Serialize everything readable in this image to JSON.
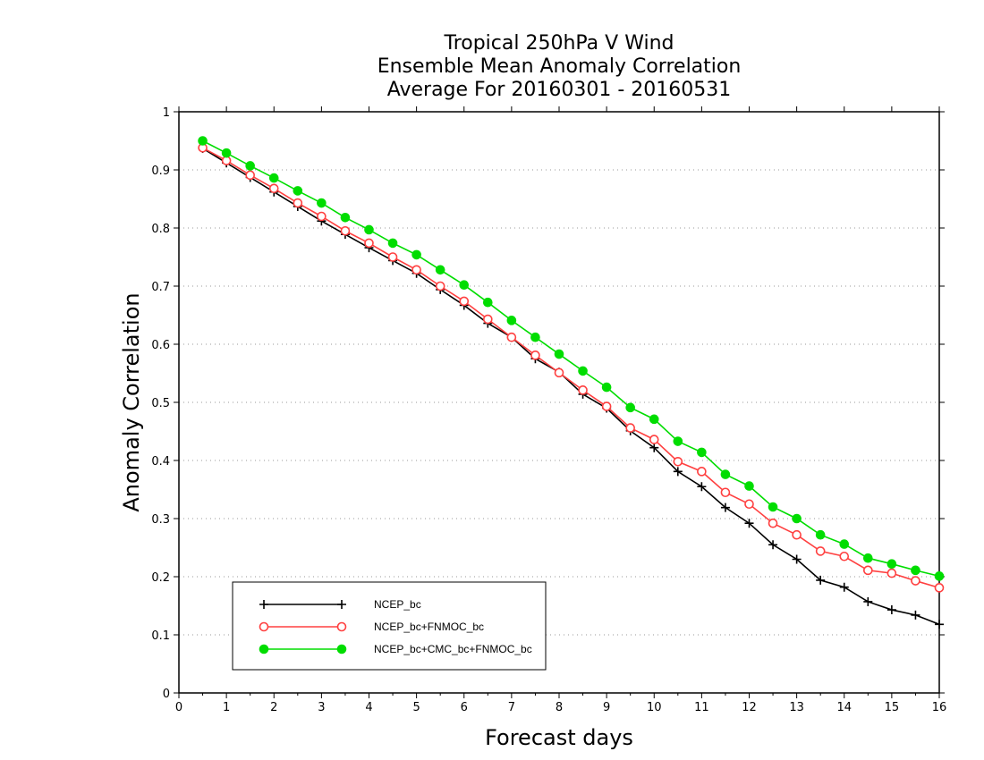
{
  "chart_data": {
    "type": "line",
    "title": [
      "Tropical 250hPa V Wind",
      "Ensemble Mean Anomaly Correlation",
      "Average For 20160301 - 20160531"
    ],
    "xlabel": "Forecast days",
    "ylabel": "Anomaly Correlation",
    "xlim": [
      0,
      16
    ],
    "ylim": [
      0,
      1
    ],
    "xticks": [
      "0",
      "1",
      "2",
      "3",
      "4",
      "5",
      "6",
      "7",
      "8",
      "9",
      "10",
      "11",
      "12",
      "13",
      "14",
      "15",
      "16"
    ],
    "yticks": [
      "0",
      "0.1",
      "0.2",
      "0.3",
      "0.4",
      "0.5",
      "0.6",
      "0.7",
      "0.8",
      "0.9",
      "1"
    ],
    "grid": "horizontal dotted",
    "legend_position": "bottom-left",
    "x": [
      0.5,
      1,
      1.5,
      2,
      2.5,
      3,
      3.5,
      4,
      4.5,
      5,
      5.5,
      6,
      6.5,
      7,
      7.5,
      8,
      8.5,
      9,
      9.5,
      10,
      10.5,
      11,
      11.5,
      12,
      12.5,
      13,
      13.5,
      14,
      14.5,
      15,
      15.5,
      16
    ],
    "series": [
      {
        "name": "NCEP_bc",
        "color": "#000000",
        "marker": "plus",
        "values": [
          0.937,
          0.912,
          0.887,
          0.862,
          0.837,
          0.812,
          0.789,
          0.766,
          0.744,
          0.722,
          0.694,
          0.667,
          0.636,
          0.612,
          0.575,
          0.552,
          0.514,
          0.49,
          0.451,
          0.422,
          0.381,
          0.355,
          0.319,
          0.292,
          0.255,
          0.23,
          0.194,
          0.182,
          0.157,
          0.143,
          0.134,
          0.118
        ]
      },
      {
        "name": "NCEP_bc+FNMOC_bc",
        "color": "#ff4040",
        "marker": "open-circle",
        "values": [
          0.938,
          0.916,
          0.891,
          0.868,
          0.843,
          0.82,
          0.795,
          0.774,
          0.75,
          0.728,
          0.7,
          0.674,
          0.643,
          0.612,
          0.581,
          0.551,
          0.521,
          0.493,
          0.456,
          0.436,
          0.398,
          0.381,
          0.345,
          0.325,
          0.292,
          0.272,
          0.244,
          0.235,
          0.211,
          0.206,
          0.193,
          0.181
        ]
      },
      {
        "name": "NCEP_bc+CMC_bc+FNMOC_bc",
        "color": "#00dd00",
        "marker": "filled-circle",
        "values": [
          0.95,
          0.929,
          0.907,
          0.886,
          0.864,
          0.843,
          0.818,
          0.797,
          0.774,
          0.754,
          0.728,
          0.702,
          0.672,
          0.641,
          0.612,
          0.583,
          0.554,
          0.526,
          0.491,
          0.471,
          0.433,
          0.414,
          0.376,
          0.356,
          0.32,
          0.3,
          0.272,
          0.256,
          0.232,
          0.222,
          0.211,
          0.201
        ]
      }
    ]
  }
}
